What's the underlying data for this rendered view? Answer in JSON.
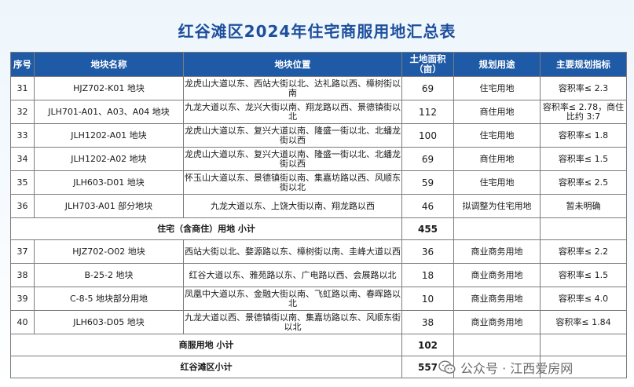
{
  "title": "红谷滩区2024年住宅商服用地汇总表",
  "headers": {
    "no": "序号",
    "name": "地块名称",
    "location": "地块位置",
    "area_line1": "土地面积",
    "area_line2": "（亩）",
    "use": "规划用途",
    "indicator": "主要规划指标"
  },
  "rows": [
    {
      "no": "31",
      "name": "HJZ702-K01 地块",
      "location": "龙虎山大道以东、西站大街以北、达礼路以西、樟树街以南",
      "area": "69",
      "use": "住宅用地",
      "indicator": "容积率≤ 2.3"
    },
    {
      "no": "32",
      "name": "JLH701-A01、A03、A04 地块",
      "location": "九龙大道以东、龙兴大街以南、翔龙路以西、景德镇街以北",
      "area": "112",
      "use": "商住用地",
      "indicator": "容积率≤ 2.78，商住比约 3:7"
    },
    {
      "no": "33",
      "name": "JLH1202-A01 地块",
      "location": "龙虎山大道以东、复兴大道以南、隆盛一街以北、北蟠龙街以西",
      "area": "100",
      "use": "住宅用地",
      "indicator": "容积率≤ 1.8"
    },
    {
      "no": "34",
      "name": "JLH1202-A02 地块",
      "location": "龙虎山大道以东、复兴大道以南、隆盛一街以北、北蟠龙街以西",
      "area": "69",
      "use": "商住用地",
      "indicator": "容积率≤ 1.5"
    },
    {
      "no": "35",
      "name": "JLH603-D01 地块",
      "location": "怀玉山大道以东、景德镇街以南、集嘉坊路以西、风顺东街以北",
      "area": "59",
      "use": "住宅用地",
      "indicator": "容积率≤ 2.5"
    },
    {
      "no": "36",
      "name": "JLH703-A01 部分地块",
      "location": "九龙大道以东、上饶大街以南、翔龙路以西",
      "area": "46",
      "use": "拟调整为住宅用地",
      "indicator": "暂未明确"
    }
  ],
  "subtotal_residential": {
    "label": "住宅（含商住）用地 小计",
    "area": "455"
  },
  "rows2": [
    {
      "no": "37",
      "name": "HJZ702-O02 地块",
      "location": "西站大街以北、婺源路以东、樟树街以南、圭峰大道以西",
      "area": "36",
      "use": "商业商务用地",
      "indicator": "容积率≤ 2.2"
    },
    {
      "no": "38",
      "name": "B-25-2 地块",
      "location": "红谷大道以东、雅苑路以东、广电路以西、会展路以北",
      "area": "18",
      "use": "商业商务用地",
      "indicator": "容积率≤ 1.5"
    },
    {
      "no": "39",
      "name": "C-8-5 地块部分用地",
      "location": "凤凰中大道以东、金融大街以南、飞虹路以南、春晖路以北",
      "area": "10",
      "use": "商业商务用地",
      "indicator": "容积率≤ 4.0"
    },
    {
      "no": "40",
      "name": "JLH603-D05 地块",
      "location": "九龙大道以西、景德镇街以南、集嘉坊路以东、风顺东街以北",
      "area": "38",
      "use": "商业商务用地",
      "indicator": "容积率≤ 1.84"
    }
  ],
  "subtotal_commercial": {
    "label": "商服用地 小计",
    "area": "102"
  },
  "total": {
    "label": "红谷滩区小计",
    "area": "557"
  },
  "footer": {
    "text": "公众号 · 江西爱房网",
    "icon": "wechat-icon"
  },
  "watermark": "爱房"
}
